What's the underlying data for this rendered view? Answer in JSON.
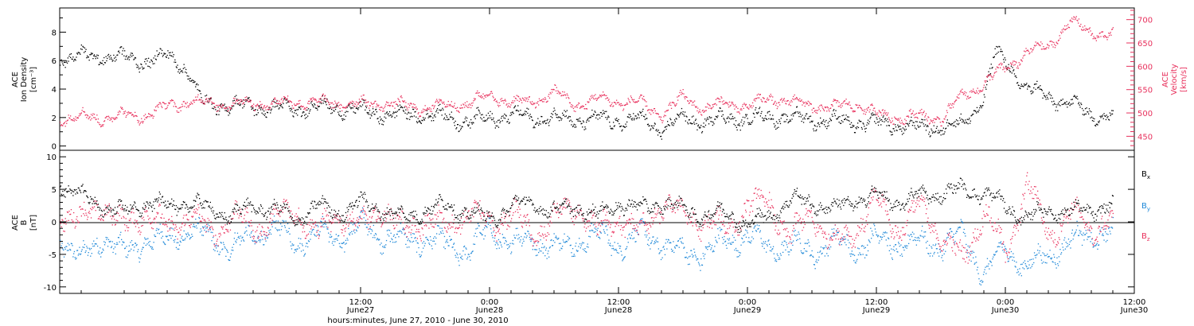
{
  "colors": {
    "black": "#000000",
    "pink": "#e8305c",
    "blue": "#1e88d8",
    "background": "#ffffff"
  },
  "footer_label": "hours:minutes, June 27, 2010 - June 30, 2010",
  "x_axis": {
    "range_hours": [
      -16,
      84
    ],
    "ticks": [
      {
        "hour": 12,
        "time": "12:00",
        "date": "June27"
      },
      {
        "hour": 24,
        "time": "0:00",
        "date": "June28"
      },
      {
        "hour": 36,
        "time": "12:00",
        "date": "June28"
      },
      {
        "hour": 48,
        "time": "0:00",
        "date": "June29"
      },
      {
        "hour": 60,
        "time": "12:00",
        "date": "June29"
      },
      {
        "hour": 72,
        "time": "0:00",
        "date": "June30"
      },
      {
        "hour": 84,
        "time": "12:00",
        "date": "June30"
      }
    ]
  },
  "top_panel": {
    "left_label_lines": [
      "ACE",
      "Ion Density"
    ],
    "left_unit": "[cm⁻³]",
    "right_label_lines": [
      "ACE",
      "Velocity"
    ],
    "right_unit": "[km/s]",
    "left_ticks": [
      "0",
      "2",
      "4",
      "6",
      "8"
    ],
    "right_ticks": [
      "450",
      "500",
      "550",
      "600",
      "650",
      "700"
    ]
  },
  "bottom_panel": {
    "label_lines": [
      "ACE",
      "B"
    ],
    "unit": "[nT]",
    "ticks": [
      "-10",
      "-5",
      "0",
      "5",
      "10"
    ],
    "legend": [
      {
        "text": "B",
        "sub": "x",
        "color": "#000000"
      },
      {
        "text": "B",
        "sub": "y",
        "color": "#1e88d8"
      },
      {
        "text": "B",
        "sub": "z",
        "color": "#e8305c"
      }
    ]
  },
  "chart_data": [
    {
      "type": "scatter",
      "title": "",
      "xlabel": "hours:minutes, June 27, 2010 - June 30, 2010",
      "ylabel": "ACE Ion Density [cm⁻³]",
      "ylabel_right": "ACE Velocity [km/s]",
      "xlim_hours_since_June27_00UT": [
        -16,
        84
      ],
      "ylim": [
        -0.3,
        9.7
      ],
      "ylim_right": [
        420,
        725
      ],
      "grid": false,
      "series": [
        {
          "name": "Ion Density",
          "axis": "left",
          "color": "#000000",
          "x": [
            -16,
            -14,
            -12,
            -10,
            -8,
            -6,
            -5,
            -4,
            -3,
            -2,
            0,
            2,
            4,
            6,
            8,
            10,
            12,
            14,
            16,
            18,
            20,
            22,
            24,
            26,
            28,
            30,
            32,
            34,
            36,
            38,
            40,
            42,
            44,
            46,
            48,
            50,
            52,
            54,
            56,
            58,
            60,
            62,
            64,
            66,
            68,
            70,
            71,
            72,
            73,
            74,
            76,
            78,
            80,
            82
          ],
          "y": [
            6.3,
            6.3,
            6.4,
            6.2,
            6.0,
            6.3,
            6.0,
            5.2,
            3.3,
            2.9,
            2.9,
            2.8,
            2.7,
            2.6,
            2.8,
            2.7,
            2.5,
            2.3,
            2.2,
            2.3,
            2.0,
            1.8,
            2.0,
            2.2,
            2.0,
            2.0,
            1.9,
            1.9,
            1.8,
            1.9,
            1.2,
            2.0,
            1.7,
            2.0,
            1.9,
            2.1,
            2.0,
            1.9,
            1.8,
            1.7,
            1.6,
            1.5,
            1.3,
            1.4,
            1.5,
            3.5,
            6.5,
            6.0,
            5.0,
            4.0,
            3.5,
            3.0,
            2.3,
            2.0
          ]
        },
        {
          "name": "Velocity",
          "axis": "right",
          "color": "#e8305c",
          "x": [
            -16,
            -14,
            -12,
            -10,
            -8,
            -6,
            -4,
            -2,
            0,
            2,
            4,
            6,
            8,
            10,
            12,
            14,
            16,
            18,
            20,
            22,
            24,
            26,
            28,
            30,
            32,
            34,
            36,
            38,
            40,
            42,
            44,
            46,
            48,
            50,
            52,
            54,
            56,
            58,
            60,
            62,
            64,
            66,
            68,
            70,
            72,
            74,
            76,
            78,
            80,
            82
          ],
          "y": [
            490,
            493,
            490,
            496,
            495,
            516,
            525,
            522,
            520,
            522,
            520,
            526,
            522,
            522,
            520,
            522,
            516,
            512,
            518,
            521,
            540,
            522,
            525,
            545,
            518,
            530,
            526,
            522,
            497,
            535,
            510,
            522,
            514,
            533,
            525,
            516,
            512,
            522,
            498,
            492,
            493,
            490,
            537,
            565,
            598,
            630,
            645,
            695,
            675,
            665
          ]
        }
      ]
    },
    {
      "type": "scatter",
      "title": "",
      "ylabel": "ACE B [nT]",
      "xlim_hours_since_June27_00UT": [
        -16,
        84
      ],
      "ylim": [
        -11,
        11
      ],
      "grid": false,
      "series": [
        {
          "name": "Bx",
          "color": "#000000",
          "x": [
            -16,
            -14,
            -12,
            -10,
            -8,
            -6,
            -4,
            -2,
            0,
            2,
            4,
            6,
            8,
            10,
            12,
            14,
            16,
            18,
            20,
            22,
            24,
            26,
            28,
            30,
            32,
            34,
            36,
            38,
            40,
            42,
            44,
            46,
            48,
            50,
            52,
            54,
            56,
            58,
            60,
            62,
            64,
            66,
            68,
            70,
            72,
            74,
            76,
            78,
            80,
            82
          ],
          "y": [
            6.0,
            4.0,
            2.5,
            1.5,
            3.0,
            2.5,
            3.0,
            2.0,
            1.0,
            2.5,
            2.0,
            0.5,
            2.5,
            1.5,
            3.0,
            2.0,
            0.5,
            2.0,
            2.5,
            1.5,
            0.5,
            2.5,
            3.0,
            1.5,
            2.5,
            1.0,
            3.0,
            2.0,
            3.0,
            2.0,
            1.0,
            1.5,
            -0.5,
            1.0,
            3.5,
            3.0,
            2.0,
            3.5,
            4.0,
            3.0,
            4.0,
            4.5,
            5.0,
            4.5,
            2.5,
            0.5,
            2.0,
            1.5,
            2.0,
            2.5
          ]
        },
        {
          "name": "By",
          "color": "#1e88d8",
          "x": [
            -16,
            -14,
            -12,
            -10,
            -8,
            -6,
            -4,
            -2,
            0,
            2,
            4,
            6,
            8,
            10,
            12,
            14,
            16,
            18,
            20,
            22,
            24,
            26,
            28,
            30,
            32,
            34,
            36,
            38,
            40,
            42,
            44,
            46,
            48,
            50,
            52,
            54,
            56,
            58,
            60,
            62,
            64,
            66,
            68,
            70,
            72,
            74,
            76,
            78,
            80,
            82
          ],
          "y": [
            -2.0,
            -6.0,
            -2.0,
            -5.0,
            -2.5,
            -3.0,
            -1.0,
            -2.5,
            -4.0,
            -2.0,
            -1.0,
            -3.0,
            -1.5,
            -2.5,
            -0.5,
            -2.0,
            -3.0,
            -2.5,
            -3.5,
            -4.5,
            -1.0,
            -3.5,
            -2.5,
            -4.0,
            -3.0,
            -2.0,
            -3.5,
            -2.0,
            -3.0,
            -5.0,
            -4.5,
            -3.0,
            -2.0,
            -4.0,
            -3.5,
            -4.5,
            -3.0,
            -4.0,
            -2.5,
            -3.5,
            -3.0,
            -3.5,
            -2.0,
            -8.0,
            -4.0,
            -7.0,
            -5.0,
            -3.0,
            -2.0,
            -1.5
          ]
        },
        {
          "name": "Bz",
          "color": "#e8305c",
          "x": [
            -16,
            -14,
            -12,
            -10,
            -8,
            -6,
            -4,
            -2,
            0,
            2,
            4,
            6,
            8,
            10,
            12,
            14,
            16,
            18,
            20,
            22,
            24,
            26,
            28,
            30,
            32,
            34,
            36,
            38,
            40,
            42,
            44,
            46,
            48,
            50,
            52,
            54,
            56,
            58,
            60,
            62,
            64,
            66,
            68,
            70,
            72,
            74,
            76,
            78,
            80,
            82
          ],
          "y": [
            2.0,
            0.0,
            3.0,
            -1.0,
            2.0,
            -1.5,
            1.5,
            -2.0,
            1.0,
            -1.0,
            0.5,
            2.0,
            -2.0,
            1.5,
            -1.0,
            2.5,
            -1.5,
            0.5,
            -1.0,
            2.0,
            -0.5,
            1.5,
            -2.0,
            0.5,
            2.5,
            -1.5,
            1.0,
            -2.0,
            3.0,
            1.0,
            0.0,
            -1.0,
            2.5,
            3.0,
            -2.5,
            1.5,
            -3.5,
            -1.0,
            3.0,
            -1.0,
            2.5,
            -2.0,
            -6.0,
            2.0,
            -5.0,
            6.0,
            -2.0,
            1.5,
            -1.0,
            0.5
          ]
        }
      ]
    }
  ]
}
